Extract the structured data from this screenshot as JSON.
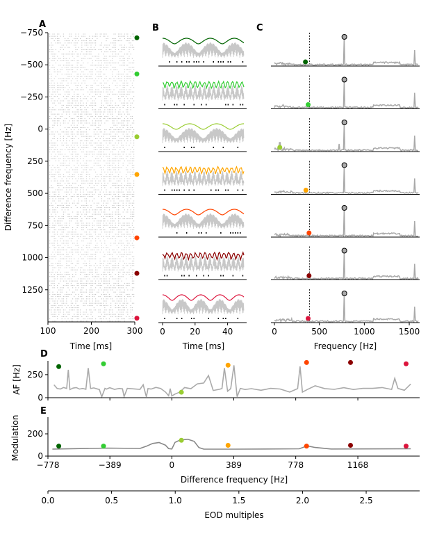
{
  "colors": [
    "#006400",
    "#32cd32",
    "#9acd32",
    "#ffa500",
    "#ff4500",
    "#8b0000",
    "#dc143c"
  ],
  "trace_color": "#aaaaaa",
  "chart_data": [
    {
      "panel": "A",
      "label": "A",
      "type": "scatter",
      "xlabel": "Time [ms]",
      "ylabel": "Difference frequency [Hz]",
      "xlim": [
        100,
        300
      ],
      "ylim": [
        -750,
        1500
      ],
      "y_inverted": true,
      "xticks": [
        "100",
        "200",
        "300"
      ],
      "yticks": [
        "-750",
        "-500",
        "-250",
        "0",
        "250",
        "500",
        "750",
        "1000",
        "1250"
      ],
      "ytick_values": [
        -750,
        -500,
        -250,
        0,
        250,
        500,
        750,
        1000,
        1250
      ],
      "marker_df": [
        -710,
        -429,
        60,
        353,
        846,
        1122,
        1471
      ]
    },
    {
      "panel": "B",
      "label": "B",
      "type": "line",
      "xlabel": "Time [ms]",
      "xlim": [
        0,
        50
      ],
      "xticks": [
        "0",
        "20",
        "40"
      ],
      "xtick_values": [
        0,
        20,
        40
      ],
      "eod_hz": 778
    },
    {
      "panel": "C",
      "label": "C",
      "type": "line",
      "xlabel": "Frequency [Hz]",
      "xlim": [
        0,
        1600
      ],
      "xticks": [
        "0",
        "500",
        "1000",
        "1500"
      ],
      "xtick_values": [
        0,
        500,
        1000,
        1500
      ],
      "dashed_line_hz": 390,
      "peak_hz": 778,
      "dot_hz": [
        345,
        375,
        60,
        350,
        385,
        385,
        375
      ]
    },
    {
      "panel": "D",
      "label": "D",
      "type": "line",
      "ylabel": "AF [Hz]",
      "ylim": [
        0,
        400
      ],
      "yticks": [
        "0",
        "250"
      ],
      "ytick_values": [
        0,
        250
      ],
      "x": [
        -740,
        -720,
        -700,
        -680,
        -660,
        -650,
        -640,
        -620,
        -600,
        -580,
        -560,
        -540,
        -525,
        -510,
        -490,
        -470,
        -455,
        -440,
        -420,
        -410,
        -390,
        -360,
        -330,
        -310,
        -300,
        -280,
        -240,
        -200,
        -180,
        -160,
        -150,
        -130,
        -100,
        -70,
        -40,
        -20,
        -10,
        0,
        20,
        50,
        80,
        120,
        160,
        200,
        230,
        260,
        300,
        315,
        330,
        350,
        370,
        390,
        410,
        430,
        460,
        500,
        560,
        620,
        680,
        740,
        790,
        805,
        820,
        850,
        900,
        960,
        1020,
        1080,
        1140,
        1200,
        1260,
        1320,
        1380,
        1400,
        1420,
        1460,
        1500
      ],
      "y": [
        140,
        100,
        95,
        110,
        100,
        300,
        90,
        105,
        110,
        95,
        100,
        90,
        320,
        100,
        105,
        95,
        90,
        10,
        100,
        95,
        110,
        90,
        100,
        95,
        10,
        100,
        95,
        90,
        140,
        10,
        100,
        95,
        110,
        100,
        60,
        20,
        100,
        20,
        40,
        60,
        110,
        100,
        150,
        160,
        240,
        80,
        90,
        100,
        320,
        70,
        100,
        350,
        10,
        100,
        90,
        100,
        80,
        100,
        95,
        60,
        100,
        340,
        60,
        90,
        130,
        100,
        90,
        110,
        90,
        100,
        100,
        110,
        90,
        210,
        100,
        80,
        150
      ],
      "dots_x": [
        -710,
        -429,
        60,
        353,
        846,
        1122,
        1471
      ],
      "dots_y": [
        338,
        368,
        59,
        353,
        382,
        382,
        368
      ]
    },
    {
      "panel": "E",
      "label": "E",
      "type": "line",
      "ylabel": "Modulation",
      "ylim": [
        0,
        350
      ],
      "yticks": [
        "0",
        "200"
      ],
      "ytick_values": [
        0,
        200
      ],
      "xlabel": "Difference frequency [Hz]",
      "xlim": [
        -778,
        1556
      ],
      "xticks": [
        "-778",
        "-389",
        "0",
        "389",
        "778",
        "1168"
      ],
      "xtick_values": [
        -778,
        -389,
        0,
        389,
        778,
        1168
      ],
      "x": [
        -750,
        -400,
        -200,
        -160,
        -120,
        -80,
        -40,
        -20,
        0,
        20,
        40,
        60,
        100,
        140,
        170,
        200,
        400,
        800,
        850,
        900,
        1000,
        1500
      ],
      "y": [
        65,
        68,
        65,
        90,
        115,
        120,
        100,
        70,
        65,
        120,
        140,
        145,
        150,
        130,
        80,
        65,
        65,
        65,
        90,
        75,
        65,
        65
      ],
      "dots_x": [
        -710,
        -429,
        60,
        353,
        846,
        1122,
        1471
      ],
      "dots_y": [
        90,
        90,
        142,
        97,
        90,
        97,
        90
      ]
    },
    {
      "panel": "EOD",
      "type": "axis",
      "xlabel": "EOD multiples",
      "xlim": [
        0,
        3
      ],
      "xticks": [
        "0.0",
        "0.5",
        "1.0",
        "1.5",
        "2.0",
        "2.5"
      ],
      "xtick_values": [
        0,
        0.5,
        1.0,
        1.5,
        2.0,
        2.5
      ]
    }
  ]
}
